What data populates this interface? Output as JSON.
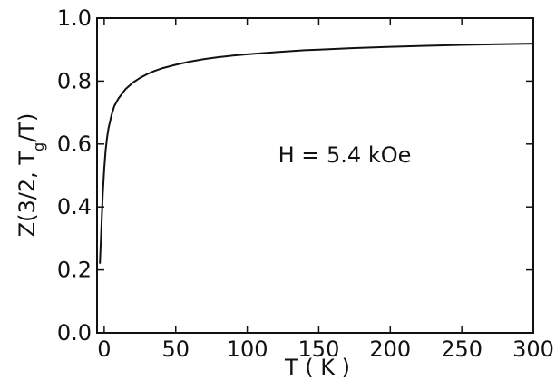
{
  "chart_data": {
    "type": "line",
    "title": "",
    "xlabel": "T ( K )",
    "ylabel": "Z(3/2, T",
    "ylabel_sub": "g",
    "ylabel_suffix": "/T)",
    "xlim": [
      -5,
      300
    ],
    "ylim": [
      0.0,
      1.0
    ],
    "xticks": [
      0,
      50,
      100,
      150,
      200,
      250,
      300
    ],
    "xtick_labels": [
      "0",
      "50",
      "100",
      "150",
      "200",
      "250",
      "300"
    ],
    "yticks": [
      0.0,
      0.2,
      0.4,
      0.6,
      0.8,
      1.0
    ],
    "ytick_labels": [
      "0.0",
      "0.2",
      "0.4",
      "0.6",
      "0.8",
      "1.0"
    ],
    "grid": false,
    "legend": "none",
    "annotations": [
      {
        "text": "H = 5.4 kOe",
        "x": 150,
        "y": 0.6
      }
    ],
    "series": [
      {
        "color": "#111111",
        "x": [
          -3,
          -2,
          -1,
          0,
          1,
          2,
          3,
          5,
          7,
          10,
          15,
          20,
          25,
          30,
          35,
          40,
          50,
          60,
          70,
          80,
          90,
          100,
          120,
          140,
          150,
          175,
          200,
          225,
          250,
          275,
          300
        ],
        "y": [
          0.22,
          0.33,
          0.44,
          0.52,
          0.58,
          0.62,
          0.65,
          0.69,
          0.72,
          0.745,
          0.775,
          0.795,
          0.81,
          0.822,
          0.832,
          0.84,
          0.852,
          0.862,
          0.87,
          0.876,
          0.881,
          0.885,
          0.892,
          0.898,
          0.9,
          0.905,
          0.909,
          0.912,
          0.915,
          0.917,
          0.919
        ]
      }
    ]
  }
}
